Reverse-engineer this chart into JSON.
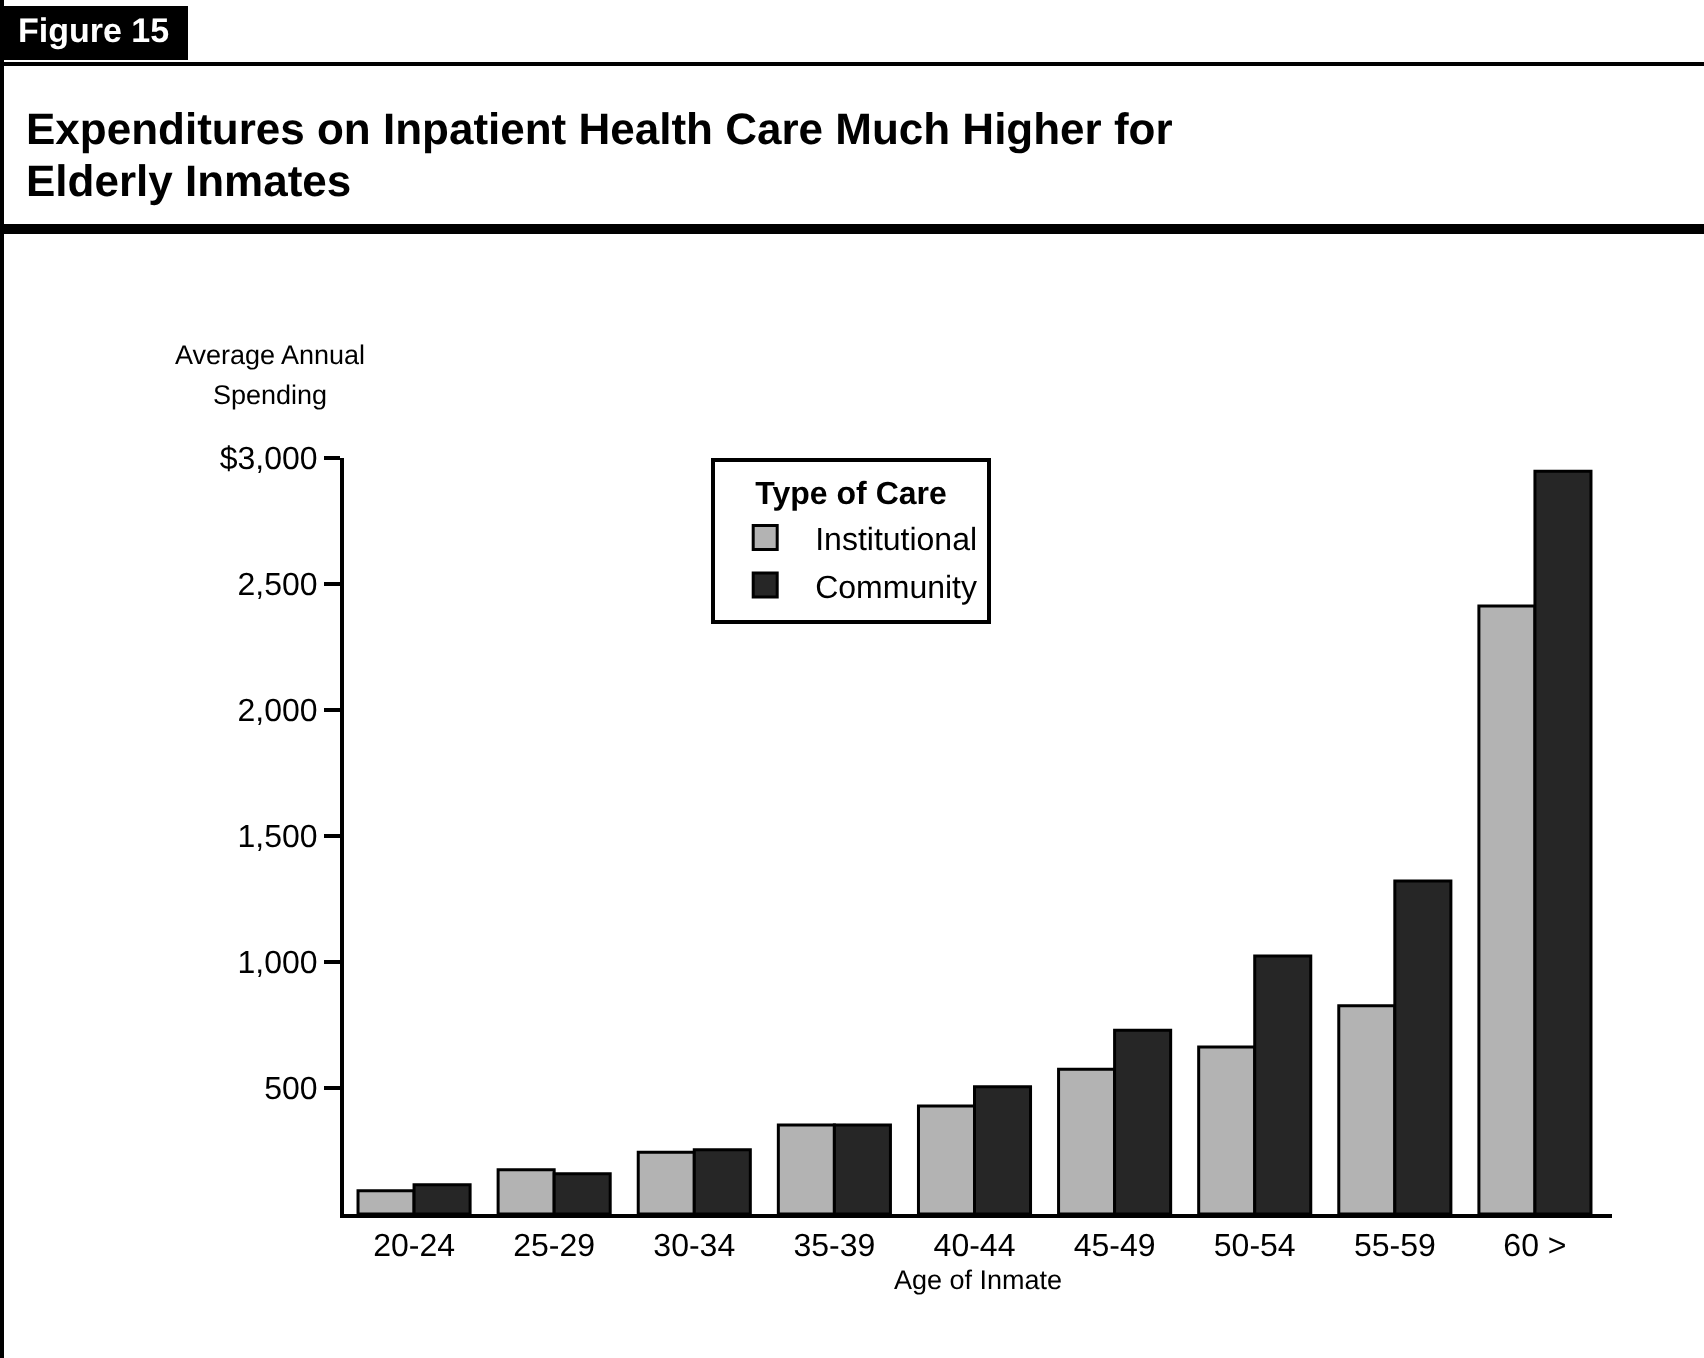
{
  "chart_data": {
    "type": "bar",
    "title": "Expenditures on Inpatient Health Care Much Higher for Elderly Inmates",
    "annotations": [
      "Figure 15"
    ],
    "ylabel": "Average Annual Spending",
    "xlabel": "Age of Inmate",
    "legend_title": "Type of Care",
    "categories": [
      "20-24",
      "25-29",
      "30-34",
      "35-39",
      "40-44",
      "45-49",
      "50-54",
      "55-59",
      "60 >"
    ],
    "series": [
      {
        "name": "Institutional",
        "color": "#b3b3b3",
        "values": [
          92,
          176,
          245,
          353,
          429,
          574,
          663,
          826,
          2413
        ]
      },
      {
        "name": "Community",
        "color": "#262626",
        "values": [
          116,
          160,
          255,
          353,
          505,
          729,
          1024,
          1321,
          2947
        ]
      }
    ],
    "ylim": [
      0,
      3000
    ],
    "yticks": [
      {
        "value": 500,
        "label": "500"
      },
      {
        "value": 1000,
        "label": "1,000"
      },
      {
        "value": 1500,
        "label": "1,500"
      },
      {
        "value": 2000,
        "label": "2,000"
      },
      {
        "value": 2500,
        "label": "2,500"
      },
      {
        "value": 3000,
        "label": "$3,000"
      }
    ],
    "grid": false,
    "legend": "top"
  }
}
